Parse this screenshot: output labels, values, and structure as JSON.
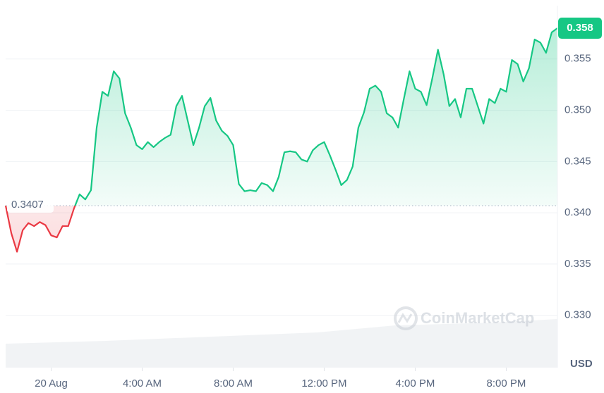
{
  "chart_data": {
    "type": "line",
    "x": [
      -2,
      -1.75,
      -1.5,
      -1.25,
      -1,
      -0.75,
      -0.5,
      -0.25,
      0,
      0.25,
      0.5,
      0.75,
      1,
      1.25,
      1.5,
      1.75,
      2,
      2.25,
      2.5,
      2.75,
      3,
      3.25,
      3.5,
      3.75,
      4,
      4.25,
      4.5,
      4.75,
      5,
      5.25,
      5.5,
      5.75,
      6,
      6.25,
      6.5,
      6.75,
      7,
      7.25,
      7.5,
      7.75,
      8,
      8.25,
      8.5,
      8.75,
      9,
      9.25,
      9.5,
      9.75,
      10,
      10.25,
      10.5,
      10.75,
      11,
      11.25,
      11.5,
      11.75,
      12,
      12.25,
      12.5,
      12.75,
      13,
      13.25,
      13.5,
      13.75,
      14,
      14.25,
      14.5,
      14.75,
      15,
      15.25,
      15.5,
      15.75,
      16,
      16.25,
      16.5,
      16.75,
      17,
      17.25,
      17.5,
      17.75,
      18,
      18.25,
      18.5,
      18.75,
      19,
      19.25,
      19.5,
      19.75,
      20,
      20.25,
      20.5,
      20.75,
      21,
      21.25,
      21.5,
      21.75,
      22,
      22.25
    ],
    "values": [
      0.3407,
      0.338,
      0.3362,
      0.3383,
      0.339,
      0.3387,
      0.3391,
      0.3388,
      0.3378,
      0.3376,
      0.3387,
      0.3387,
      0.3404,
      0.3418,
      0.3413,
      0.3422,
      0.3483,
      0.3518,
      0.3514,
      0.3538,
      0.3531,
      0.3497,
      0.3483,
      0.3466,
      0.3462,
      0.3469,
      0.3464,
      0.3469,
      0.3473,
      0.3476,
      0.3504,
      0.3514,
      0.349,
      0.3466,
      0.3483,
      0.3504,
      0.3512,
      0.349,
      0.348,
      0.3475,
      0.3466,
      0.3428,
      0.3421,
      0.3422,
      0.3421,
      0.3429,
      0.3427,
      0.3421,
      0.3435,
      0.3459,
      0.346,
      0.3459,
      0.3452,
      0.345,
      0.3461,
      0.3466,
      0.3469,
      0.3456,
      0.3442,
      0.3427,
      0.3432,
      0.3445,
      0.3483,
      0.3498,
      0.3521,
      0.3524,
      0.3518,
      0.3497,
      0.3493,
      0.3483,
      0.3511,
      0.3538,
      0.3521,
      0.3518,
      0.3505,
      0.3531,
      0.3559,
      0.3535,
      0.3504,
      0.3511,
      0.3493,
      0.3521,
      0.3521,
      0.3504,
      0.3487,
      0.3511,
      0.3507,
      0.3521,
      0.3518,
      0.3549,
      0.3545,
      0.3528,
      0.3541,
      0.3569,
      0.3566,
      0.3556,
      0.3576,
      0.358
    ],
    "baseline": 0.3407,
    "up_color": "#16c784",
    "down_color": "#ea3943",
    "xlim": [
      -2,
      22.25
    ],
    "xticks": [
      {
        "value": 0,
        "label": "20 Aug"
      },
      {
        "value": 4,
        "label": "4:00 AM"
      },
      {
        "value": 8,
        "label": "8:00 AM"
      },
      {
        "value": 12,
        "label": "12:00 PM"
      },
      {
        "value": 16,
        "label": "4:00 PM"
      },
      {
        "value": 20,
        "label": "8:00 PM"
      }
    ],
    "ylim": [
      0.3249,
      0.3602
    ],
    "yticks": [
      {
        "value": 0.33,
        "label": "0.330"
      },
      0.335,
      {
        "value": 0.34,
        "label": "0.340"
      },
      0.345,
      {
        "value": 0.35,
        "label": "0.350"
      },
      0.355
    ],
    "grid": true,
    "currency_label": "USD",
    "watermark": "CoinMarketCap"
  }
}
